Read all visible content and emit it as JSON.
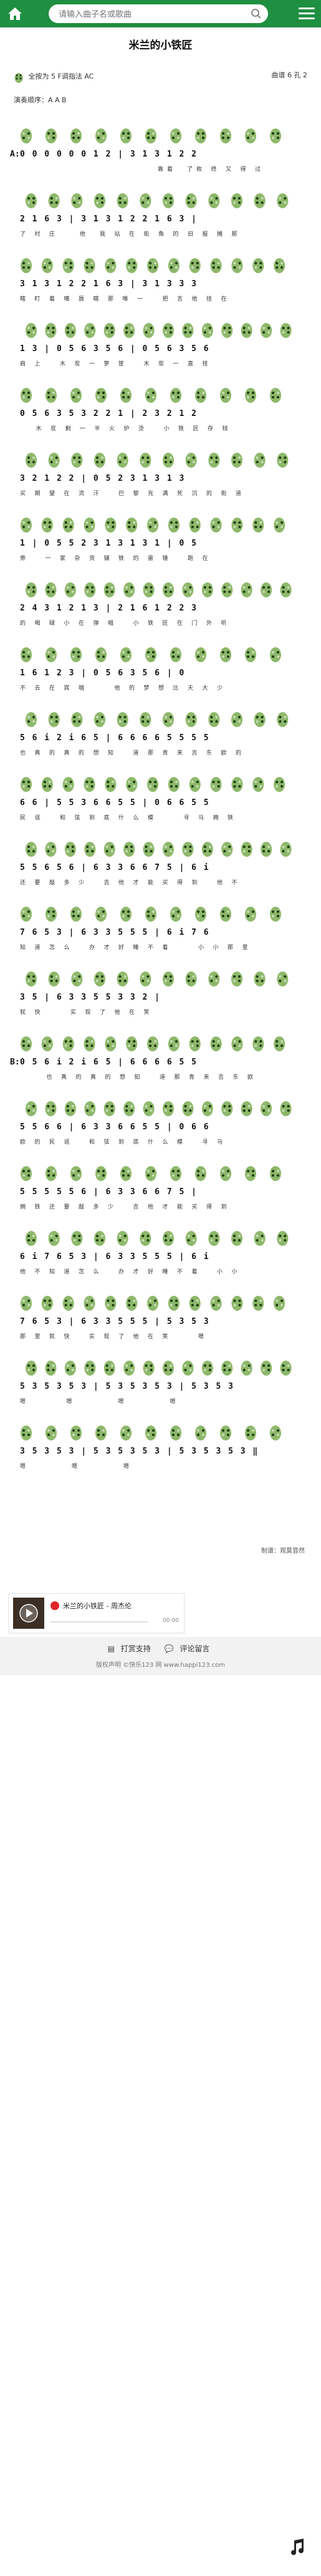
{
  "search": {
    "placeholder": "请输入曲子名或歌曲"
  },
  "page_title": "米兰的小铁匠",
  "meta": {
    "left_text": "全按为 5  F调指法  AC",
    "right_text": "曲谱  6 孔 2"
  },
  "play_order": "演奏顺序：A A B",
  "rows": [
    {
      "marker": "A:",
      "notes": "0 0 0 0 0 0 1 2 | 3 1 3 1 2 2",
      "lyrics": "                          靠着  了枚 终 又 得 过"
    },
    {
      "marker": "",
      "notes": "2 1 6 3 | 3 1 3 1 2 2 1 6 3 |",
      "lyrics": "了 村 庄    他  我 站 在 街 角 的 旧 报 摊 那"
    },
    {
      "marker": "",
      "notes": "3 1 3 1 2 2 1 6 3 | 3 1 3 3 3",
      "lyrics": "瞎 盯 着 嘴 唇 瞎 那 唯 一   把 吉 他 挂 在"
    },
    {
      "marker": "",
      "notes": "1 3 | 0 5 6 3 5 6 | 0 5 6 3 5 6",
      "lyrics": "肩 上   木 炭 一 箩 筐   木 炭 一 直 挂"
    },
    {
      "marker": "",
      "notes": "0 5 6 3 5 3 2 2 1 | 2 3 2 1 2",
      "lyrics": "   木 炭 剩 一 半 火 炉 烫   小 铁 匠 存 钱"
    },
    {
      "marker": "",
      "notes": "3 2 1 2 2 | 0 5 2 3 1 3 1 3",
      "lyrics": "买 期 望 在 流 汗   巴 黎 充 满 死 沉 的 街 道"
    },
    {
      "marker": "",
      "notes": "1 | 0 5 5 2 3 1 3 1 3 1 | 0 5",
      "lyrics": "旁   一 家 杂 货 铺 铁 的 雷 锤   跑 在"
    },
    {
      "marker": "",
      "notes": "2 4 3 1 2 1 3 | 2 1 6 1 2 2 3",
      "lyrics": "的 喝 碌 小 在 弹 唱   小 铁 匠 在 门 外 听"
    },
    {
      "marker": "",
      "notes": "1 6 1 2 3 | 0 5 6 3 5 6 | 0",
      "lyrics": "不 去 在 宾 唱     他 的 梦 想 比 天 大 少"
    },
    {
      "marker": "",
      "notes": "5 6 i 2 i 6 5 | 6 6 6 6 5 5 5 5",
      "lyrics": "也 真 的 真 的 想 知   道 那 青 来 吉 东 欧 的"
    },
    {
      "marker": "",
      "notes": "6 6 | 5 5 3 6 6 5 5 | 0 6 6 5 5",
      "lyrics": "民 谣   和 弦 到 底 什 么 模     寻 马 拥 铁"
    },
    {
      "marker": "",
      "notes": "5 5 6 5 6 | 6 3 3 6 6 7 5 | 6 i",
      "lyrics": "还 要 敲 多 少   吉 他 才 能 买 得 到   他 不"
    },
    {
      "marker": "",
      "notes": "7 6 5 3 | 6 3 3 5 5 5 | 6 i 7 6",
      "lyrics": "知 道 怎 么   办 才 好 睡 不 着     小 小 那 里"
    },
    {
      "marker": "",
      "notes": "3 5 | 6 3 3 5 5 3 3 2 |",
      "lyrics": "就 快     实 现 了 他 在 笑"
    },
    {
      "marker": "B:",
      "notes": "0 5 6 i 2 i 6 5 | 6 6 6 6 5 5",
      "lyrics": "     也 真 的 真 的 想 知   道 那 青 来 吉 东 欧"
    },
    {
      "marker": "",
      "notes": "5 5 6 6 | 6 3 3 6 6 5 5 | 0 6 6",
      "lyrics": "欧 的 民 谣   和 弦 到 底 什 么 模   寻 马"
    },
    {
      "marker": "",
      "notes": "5 5 5 5 5 6 | 6 3 3 6 6 7 5 |",
      "lyrics": "拥 铁 还 要 敲 多 少   吉 他 才 能 买 得 到"
    },
    {
      "marker": "",
      "notes": "6 i 7 6 5 3 | 6 3 3 5 5 5 | 6 i",
      "lyrics": "他 不 知 道 怎 么   办 才 好 睡 不 着   小 小"
    },
    {
      "marker": "",
      "notes": "7 6 5 3 | 6 3 3 5 5 5 | 5 3 5 3",
      "lyrics": "那 里 就 快   实 现 了 他 在 笑     嗯"
    },
    {
      "marker": "",
      "notes": "5 3 5 3 5 3 | 5 3 5 3 5 3 | 5 3 5 3",
      "lyrics": "嗯       嗯        嗯        嗯"
    },
    {
      "marker": "",
      "notes": "3 5 3 5 3 | 5 3 5 3 5 3 | 5 3 5 3 5 3 ‖",
      "lyrics": "嗯        嗯        嗯"
    }
  ],
  "credit": "制谱：观莫音然",
  "player": {
    "title": "米兰的小铁匠 - 周杰伦",
    "time": "00:00"
  },
  "footer": {
    "donate_label": "打赏支持",
    "comment_label": "评论留言",
    "copyright": "版权声明  ©快乐123 网 www.happi123.com"
  },
  "colors": {
    "topbar": "#1f8f41",
    "fingering": "#8db86a"
  }
}
